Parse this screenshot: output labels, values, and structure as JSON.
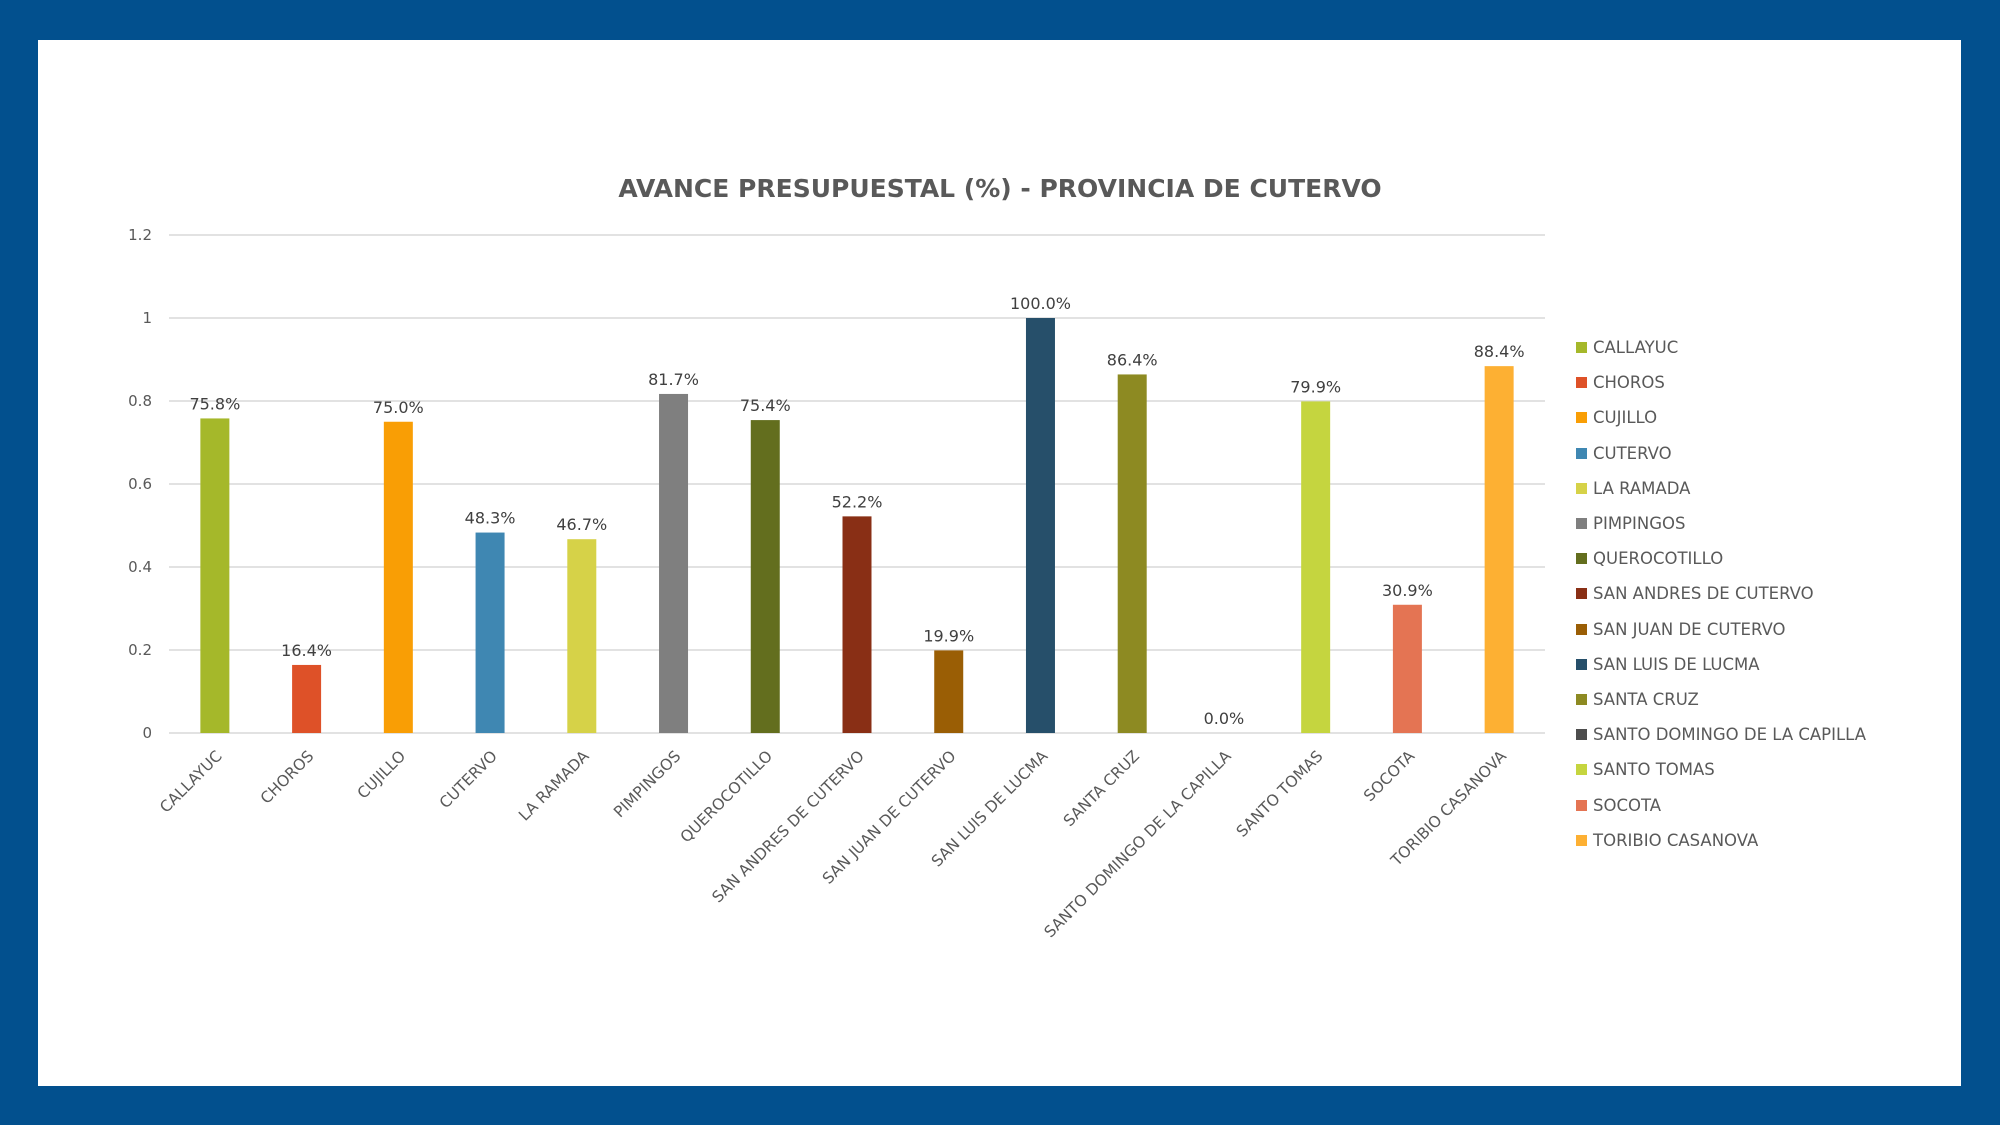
{
  "chart_data": {
    "type": "bar",
    "title": "AVANCE PRESUPUESTAL (%) - PROVINCIA DE CUTERVO",
    "xlabel": "",
    "ylabel": "",
    "ylim": [
      0,
      1.2
    ],
    "yticks": [
      "0",
      "0.2",
      "0.4",
      "0.6",
      "0.8",
      "1",
      "1.2"
    ],
    "grid": true,
    "legend_position": "right",
    "categories": [
      "CALLAYUC",
      "CHOROS",
      "CUJILLO",
      "CUTERVO",
      "LA RAMADA",
      "PIMPINGOS",
      "QUEROCOTILLO",
      "SAN ANDRES DE CUTERVO",
      "SAN JUAN DE CUTERVO",
      "SAN LUIS DE LUCMA",
      "SANTA CRUZ",
      "SANTO DOMINGO DE LA CAPILLA",
      "SANTO TOMAS",
      "SOCOTA",
      "TORIBIO CASANOVA"
    ],
    "values": [
      0.758,
      0.164,
      0.75,
      0.483,
      0.467,
      0.817,
      0.754,
      0.522,
      0.199,
      1.0,
      0.864,
      0.0,
      0.799,
      0.309,
      0.884
    ],
    "data_labels": [
      "75.8%",
      "16.4%",
      "75.0%",
      "48.3%",
      "46.7%",
      "81.7%",
      "75.4%",
      "52.2%",
      "19.9%",
      "100.0%",
      "86.4%",
      "0.0%",
      "79.9%",
      "30.9%",
      "88.4%"
    ],
    "colors": [
      "#a5b82a",
      "#de5128",
      "#f99e05",
      "#3f87b2",
      "#d6d248",
      "#7f7f7f",
      "#636e1e",
      "#892f15",
      "#9a5e05",
      "#264f6a",
      "#8d8a22",
      "#4d4d4d",
      "#c5d53f",
      "#e47453",
      "#fdb033"
    ]
  }
}
